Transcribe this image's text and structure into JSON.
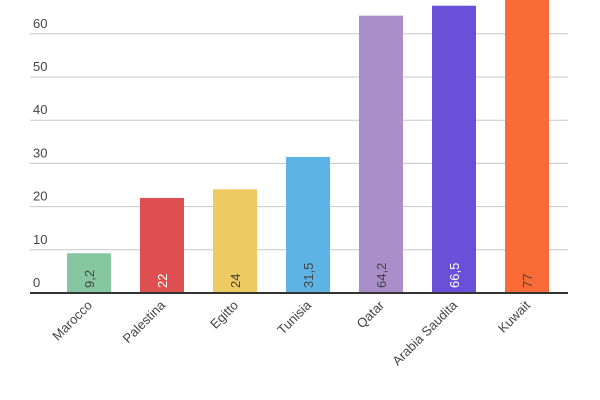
{
  "chart_data": {
    "type": "bar",
    "title": "",
    "xlabel": "",
    "ylabel": "",
    "categories": [
      "Marocco",
      "Palestina",
      "Egitto",
      "Tunisia",
      "Qatar",
      "Arabia Saudita",
      "Kuwait"
    ],
    "values": [
      9.2,
      22,
      24,
      31.5,
      64.2,
      66.5,
      77
    ],
    "value_labels": [
      "9,2",
      "22",
      "24",
      "31,5",
      "64,2",
      "66,5",
      "77"
    ],
    "colors": [
      "#86c6a0",
      "#dd4f51",
      "#eeca63",
      "#5db3e3",
      "#a98ec9",
      "#6950d8",
      "#f96c38"
    ],
    "label_colors": [
      "#444444",
      "#ffffff",
      "#444444",
      "#444444",
      "#444444",
      "#ffffff",
      "#444444"
    ],
    "yticks": [
      0,
      10,
      20,
      30,
      40,
      50,
      60
    ],
    "ylim": [
      0,
      68
    ],
    "grid": true,
    "legend": "none"
  }
}
